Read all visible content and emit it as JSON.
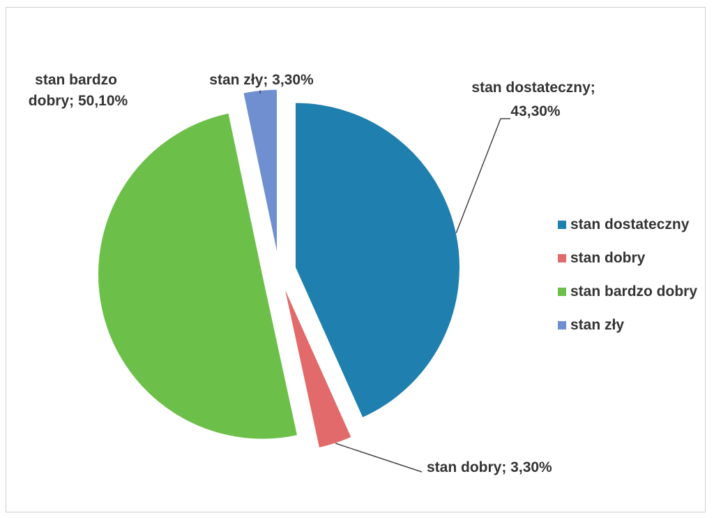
{
  "chart_data": {
    "type": "pie",
    "categories": [
      "stan dostateczny",
      "stan dobry",
      "stan bardzo dobry",
      "stan zły"
    ],
    "values": [
      43.3,
      3.3,
      50.1,
      3.3
    ],
    "value_labels": [
      "43,30%",
      "3,30%",
      "50,10%",
      "3,30%"
    ],
    "data_labels": [
      "stan dostateczny; 43,30%",
      "stan dobry; 3,30%",
      "stan bardzo dobry; 50,10%",
      "stan zły; 3,30%"
    ],
    "colors": [
      "#1f7fae",
      "#e26a6a",
      "#6cc04a",
      "#6f8fd0"
    ],
    "exploded": true,
    "legend_position": "right",
    "legend": [
      "stan dostateczny",
      "stan dobry",
      "stan bardzo dobry",
      "stan zły"
    ]
  }
}
